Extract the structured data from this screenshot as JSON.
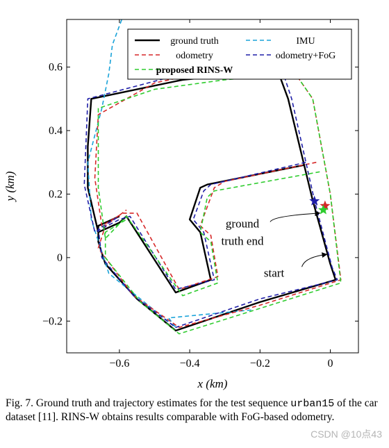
{
  "chart_data": {
    "type": "line",
    "xlabel": "x (km)",
    "ylabel": "y (km)",
    "xlim": [
      -0.75,
      0.08
    ],
    "ylim": [
      -0.3,
      0.75
    ],
    "x_ticks": [
      -0.6,
      -0.4,
      -0.2,
      0
    ],
    "x_tick_labels": [
      "−0.6",
      "−0.4",
      "−0.2",
      "0"
    ],
    "y_ticks": [
      -0.2,
      0,
      0.2,
      0.4,
      0.6
    ],
    "y_tick_labels": [
      "−0.2",
      "0",
      "0.2",
      "0.4",
      "0.6"
    ],
    "grid": false,
    "legend_position": "top-right",
    "legend_columns": 2,
    "series": [
      {
        "name": "ground truth",
        "color": "#000000",
        "dash": "solid",
        "bold": false,
        "points": [
          [
            -0.073,
            0.292
          ],
          [
            -0.35,
            0.23
          ],
          [
            -0.37,
            0.22
          ],
          [
            -0.4,
            0.12
          ],
          [
            -0.37,
            0.08
          ],
          [
            -0.34,
            -0.07
          ],
          [
            -0.44,
            -0.11
          ],
          [
            -0.58,
            0.13
          ],
          [
            -0.6,
            0.11
          ],
          [
            -0.66,
            0.08
          ],
          [
            -0.69,
            0.22
          ],
          [
            -0.69,
            0.35
          ],
          [
            -0.68,
            0.5
          ],
          [
            -0.42,
            0.56
          ],
          [
            -0.15,
            0.59
          ],
          [
            -0.12,
            0.5
          ],
          [
            -0.05,
            0.18
          ],
          [
            0.0,
            -0.02
          ],
          [
            0.015,
            -0.07
          ],
          [
            -0.2,
            -0.14
          ],
          [
            -0.44,
            -0.23
          ],
          [
            -0.55,
            -0.13
          ],
          [
            -0.64,
            -0.02
          ],
          [
            -0.66,
            0.05
          ],
          [
            -0.66,
            0.1
          ],
          [
            -0.6,
            0.13
          ]
        ]
      },
      {
        "name": "IMU",
        "color": "#1aa3d9",
        "dash": "dashed",
        "bold": false,
        "points": [
          [
            -0.225,
            -0.165
          ],
          [
            -0.46,
            -0.19
          ],
          [
            -0.44,
            -0.22
          ],
          [
            -0.63,
            -0.05
          ],
          [
            -0.68,
            0.12
          ],
          [
            -0.69,
            0.3
          ],
          [
            -0.65,
            0.47
          ],
          [
            -0.63,
            0.58
          ],
          [
            -0.62,
            0.67
          ],
          [
            -0.59,
            0.76
          ]
        ]
      },
      {
        "name": "odometry",
        "color": "#d62728",
        "dash": "dashed",
        "bold": false,
        "points": [
          [
            -0.04,
            0.3
          ],
          [
            -0.3,
            0.24
          ],
          [
            -0.33,
            0.22
          ],
          [
            -0.37,
            0.1
          ],
          [
            -0.34,
            0.07
          ],
          [
            -0.32,
            -0.06
          ],
          [
            -0.43,
            -0.1
          ],
          [
            -0.55,
            0.14
          ],
          [
            -0.59,
            0.14
          ],
          [
            -0.65,
            0.1
          ],
          [
            -0.67,
            0.25
          ],
          [
            -0.66,
            0.45
          ],
          [
            -0.5,
            0.55
          ],
          [
            -0.2,
            0.62
          ],
          [
            -0.1,
            0.58
          ],
          [
            -0.05,
            0.5
          ],
          [
            0.0,
            0.2
          ],
          [
            0.03,
            -0.07
          ],
          [
            -0.2,
            -0.15
          ],
          [
            -0.43,
            -0.22
          ],
          [
            -0.56,
            -0.12
          ],
          [
            -0.66,
            0.03
          ],
          [
            -0.64,
            0.1
          ],
          [
            -0.58,
            0.15
          ]
        ]
      },
      {
        "name": "odometry+FoG",
        "color": "#1f1fa8",
        "dash": "dashed",
        "bold": false,
        "points": [
          [
            -0.07,
            0.3
          ],
          [
            -0.34,
            0.23
          ],
          [
            -0.36,
            0.21
          ],
          [
            -0.39,
            0.12
          ],
          [
            -0.36,
            0.08
          ],
          [
            -0.33,
            -0.07
          ],
          [
            -0.44,
            -0.1
          ],
          [
            -0.57,
            0.13
          ],
          [
            -0.6,
            0.12
          ],
          [
            -0.67,
            0.08
          ],
          [
            -0.7,
            0.23
          ],
          [
            -0.69,
            0.5
          ],
          [
            -0.45,
            0.57
          ],
          [
            -0.14,
            0.6
          ],
          [
            -0.11,
            0.5
          ],
          [
            -0.045,
            0.18
          ],
          [
            0.005,
            -0.03
          ],
          [
            0.02,
            -0.07
          ],
          [
            -0.2,
            -0.13
          ],
          [
            -0.44,
            -0.22
          ],
          [
            -0.56,
            -0.12
          ],
          [
            -0.65,
            0.0
          ],
          [
            -0.66,
            0.09
          ],
          [
            -0.6,
            0.13
          ]
        ]
      },
      {
        "name": "proposed RINS-W",
        "color": "#2ecc2e",
        "dash": "dashed",
        "bold": true,
        "points": [
          [
            -0.03,
            0.27
          ],
          [
            -0.33,
            0.21
          ],
          [
            -0.35,
            0.19
          ],
          [
            -0.37,
            0.08
          ],
          [
            -0.34,
            0.05
          ],
          [
            -0.32,
            -0.08
          ],
          [
            -0.42,
            -0.12
          ],
          [
            -0.56,
            0.1
          ],
          [
            -0.58,
            0.13
          ],
          [
            -0.64,
            0.06
          ],
          [
            -0.66,
            0.22
          ],
          [
            -0.66,
            0.47
          ],
          [
            -0.5,
            0.53
          ],
          [
            -0.3,
            0.56
          ],
          [
            -0.1,
            0.58
          ],
          [
            -0.05,
            0.5
          ],
          [
            0.0,
            0.2
          ],
          [
            0.03,
            -0.08
          ],
          [
            -0.2,
            -0.16
          ],
          [
            -0.43,
            -0.24
          ],
          [
            -0.54,
            -0.14
          ],
          [
            -0.64,
            0.0
          ],
          [
            -0.64,
            0.08
          ],
          [
            -0.58,
            0.12
          ]
        ]
      }
    ],
    "markers": [
      {
        "label": "ground truth end",
        "color": "#1f1fa8",
        "x": -0.045,
        "y": 0.178
      },
      {
        "label": "odometry end",
        "color": "#d62728",
        "x": -0.015,
        "y": 0.163
      },
      {
        "label": "RINS-W end",
        "color": "#2ecc2e",
        "x": -0.02,
        "y": 0.15
      }
    ],
    "annotations": [
      {
        "line1": "ground",
        "line2": "truth end",
        "text_x": -0.25,
        "text_y": 0.095,
        "to_x": -0.03,
        "to_y": 0.14
      },
      {
        "line1": "start",
        "line2": "",
        "text_x": -0.16,
        "text_y": -0.06,
        "to_x": -0.01,
        "to_y": 0.01
      }
    ]
  },
  "caption": {
    "prefix": "Fig. 7.  Ground truth and trajectory estimates for the test sequence ",
    "sequence": "urban15",
    "suffix": " of the car dataset [11]. RINS-W obtains results comparable with FoG-based odometry."
  },
  "watermark": "CSDN @10点43"
}
